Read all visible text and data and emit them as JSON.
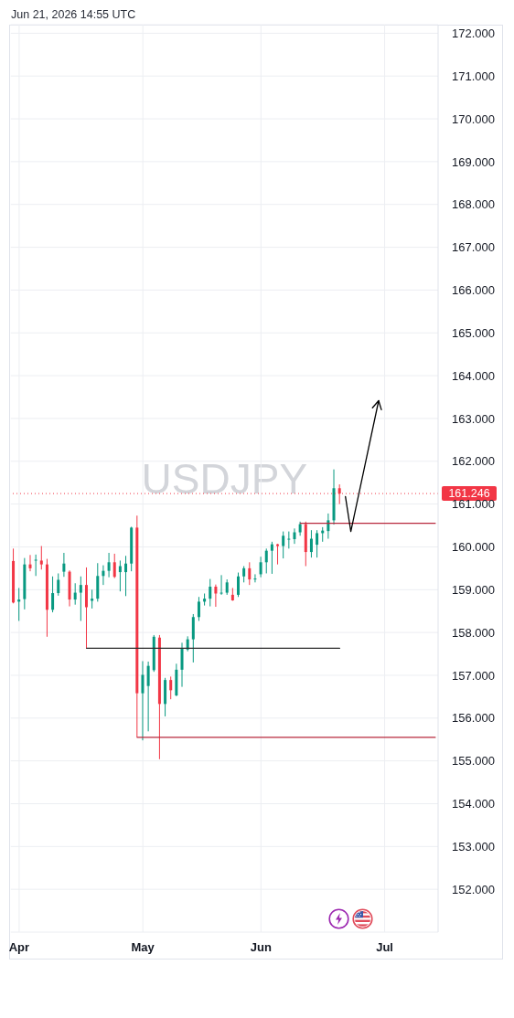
{
  "chart_data": {
    "type": "candlestick",
    "title": "USDJPY",
    "annotations": [
      "Jun 21, 2026 14:55 UTC"
    ],
    "categories": [
      null,
      "Apr",
      null,
      null,
      null,
      null,
      null,
      null,
      null,
      null,
      null,
      null,
      null,
      null,
      null,
      null,
      null,
      null,
      null,
      null,
      null,
      null,
      null,
      "May",
      null,
      null,
      null,
      null,
      null,
      null,
      null,
      null,
      null,
      null,
      null,
      null,
      null,
      null,
      null,
      null,
      null,
      null,
      null,
      null,
      "Jun",
      null,
      null,
      null,
      null,
      null,
      null,
      null,
      null,
      null,
      null,
      null,
      null,
      null,
      null,
      null,
      null,
      null,
      null,
      null,
      null,
      null,
      "Jul",
      null,
      null,
      null,
      null,
      null,
      null,
      null,
      null,
      null
    ],
    "ohlc": [
      [
        159.67,
        159.96,
        158.68,
        158.7
      ],
      [
        158.72,
        159.04,
        158.27,
        158.77
      ],
      [
        158.78,
        159.74,
        158.54,
        159.59
      ],
      [
        159.59,
        159.81,
        159.43,
        159.5
      ],
      [
        159.68,
        159.82,
        159.32,
        159.7
      ],
      [
        159.68,
        160.02,
        159.47,
        159.59
      ],
      [
        159.59,
        159.72,
        157.9,
        158.53
      ],
      [
        158.53,
        159.31,
        158.47,
        158.92
      ],
      [
        158.92,
        159.38,
        158.86,
        159.23
      ],
      [
        159.42,
        159.86,
        159.3,
        159.61
      ],
      [
        159.42,
        159.45,
        158.61,
        158.77
      ],
      [
        158.77,
        159.15,
        158.65,
        158.93
      ],
      [
        158.93,
        159.31,
        158.27,
        159.11
      ],
      [
        159.11,
        159.52,
        157.62,
        158.59
      ],
      [
        158.74,
        159.0,
        158.56,
        158.79
      ],
      [
        158.79,
        159.62,
        158.72,
        159.32
      ],
      [
        159.32,
        159.57,
        159.11,
        159.44
      ],
      [
        159.44,
        159.86,
        159.29,
        159.64
      ],
      [
        159.64,
        159.84,
        159.27,
        159.3
      ],
      [
        159.41,
        159.68,
        158.96,
        159.55
      ],
      [
        159.41,
        159.79,
        158.85,
        159.61
      ],
      [
        159.61,
        160.47,
        159.43,
        160.45
      ],
      [
        160.45,
        160.73,
        155.55,
        156.58
      ],
      [
        156.58,
        157.33,
        155.48,
        157.01
      ],
      [
        156.75,
        157.32,
        155.69,
        157.22
      ],
      [
        157.12,
        157.94,
        157.08,
        157.9
      ],
      [
        157.88,
        157.94,
        155.04,
        156.33
      ],
      [
        156.33,
        156.94,
        156.04,
        156.89
      ],
      [
        156.89,
        156.97,
        156.44,
        156.65
      ],
      [
        156.53,
        157.27,
        156.51,
        157.13
      ],
      [
        157.13,
        157.76,
        156.73,
        157.62
      ],
      [
        157.6,
        157.91,
        157.56,
        157.84
      ],
      [
        157.84,
        158.43,
        157.3,
        158.36
      ],
      [
        158.36,
        158.83,
        158.27,
        158.72
      ],
      [
        158.72,
        158.91,
        158.63,
        158.79
      ],
      [
        158.79,
        159.25,
        158.61,
        159.07
      ],
      [
        159.07,
        159.12,
        158.6,
        158.91
      ],
      [
        158.91,
        159.34,
        158.88,
        158.93
      ],
      [
        158.93,
        159.24,
        158.88,
        159.17
      ],
      [
        158.88,
        159.04,
        158.74,
        158.75
      ],
      [
        158.88,
        159.4,
        158.83,
        159.31
      ],
      [
        159.31,
        159.55,
        159.17,
        159.5
      ],
      [
        159.5,
        159.64,
        159.11,
        159.24
      ],
      [
        159.24,
        159.36,
        159.17,
        159.26
      ],
      [
        159.36,
        159.77,
        159.29,
        159.64
      ],
      [
        159.64,
        159.96,
        159.38,
        159.91
      ],
      [
        159.91,
        160.12,
        159.37,
        160.06
      ],
      [
        160.06,
        160.07,
        159.59,
        160.02
      ],
      [
        160.02,
        160.36,
        159.73,
        160.26
      ],
      [
        160.18,
        160.36,
        159.96,
        160.19
      ],
      [
        160.18,
        160.43,
        160.07,
        160.34
      ],
      [
        160.34,
        160.59,
        160.26,
        160.53
      ],
      [
        160.53,
        160.59,
        159.55,
        159.88
      ],
      [
        159.88,
        160.39,
        159.75,
        160.19
      ],
      [
        160.05,
        160.39,
        159.75,
        160.32
      ],
      [
        160.32,
        160.46,
        160.12,
        160.38
      ],
      [
        160.37,
        160.78,
        160.19,
        160.62
      ],
      [
        160.62,
        161.81,
        160.52,
        161.37
      ],
      [
        161.37,
        161.46,
        161.0,
        161.246
      ],
      null,
      null,
      null,
      null,
      null,
      null,
      null,
      null,
      null,
      null,
      null,
      null,
      null,
      null,
      null,
      null,
      null
    ],
    "colors": [
      "#f23645",
      "#089981",
      "#089981",
      "#f23645",
      "#089981",
      "#f23645",
      "#f23645",
      "#089981",
      "#089981",
      "#089981",
      "#f23645",
      "#089981",
      "#089981",
      "#f23645",
      "#089981",
      "#089981",
      "#089981",
      "#089981",
      "#f23645",
      "#089981",
      "#089981",
      "#089981",
      "#f23645",
      "#089981",
      "#089981",
      "#089981",
      "#f23645",
      "#089981",
      "#f23645",
      "#089981",
      "#089981",
      "#089981",
      "#089981",
      "#089981",
      "#089981",
      "#089981",
      "#f23645",
      "#089981",
      "#089981",
      "#f23645",
      "#089981",
      "#089981",
      "#f23645",
      "#089981",
      "#089981",
      "#089981",
      "#089981",
      "#f23645",
      "#089981",
      "#089981",
      "#089981",
      "#089981",
      "#f23645",
      "#089981",
      "#089981",
      "#089981",
      "#089981",
      "#089981",
      "#f23645",
      null,
      null,
      null,
      null,
      null,
      null,
      null,
      null,
      null,
      null,
      null,
      null,
      null,
      null,
      null,
      null,
      null
    ],
    "series": [
      {
        "type": "line",
        "color": "#2a2a2a",
        "values": [
          null,
          null,
          null,
          null,
          null,
          null,
          null,
          null,
          null,
          null,
          null,
          null,
          null,
          157.63,
          157.63,
          157.63,
          157.63,
          157.63,
          157.63,
          157.63,
          157.63,
          157.63,
          157.63,
          157.63,
          157.63,
          157.63,
          157.63,
          157.63,
          157.63,
          157.63,
          157.63,
          157.63,
          157.63,
          157.63,
          157.63,
          157.63,
          157.63,
          157.63,
          157.63,
          157.63,
          157.63,
          157.63,
          157.63,
          157.63,
          157.63,
          157.63,
          157.63,
          157.63,
          157.63,
          157.63,
          157.63,
          157.63,
          157.63,
          157.63,
          157.63,
          157.63,
          157.63,
          157.63,
          157.63,
          null,
          null,
          null,
          null,
          null,
          null,
          null,
          null,
          null,
          null,
          null,
          null,
          null,
          null,
          null,
          null,
          null
        ]
      },
      {
        "type": "line",
        "color": "#b8283c",
        "values": [
          null,
          null,
          null,
          null,
          null,
          null,
          null,
          null,
          null,
          null,
          null,
          null,
          null,
          null,
          null,
          null,
          null,
          null,
          null,
          null,
          null,
          null,
          155.55,
          155.55,
          155.55,
          155.55,
          155.55,
          155.55,
          155.55,
          155.55,
          155.55,
          155.55,
          155.55,
          155.55,
          155.55,
          155.55,
          155.55,
          155.55,
          155.55,
          155.55,
          155.55,
          155.55,
          155.55,
          155.55,
          155.55,
          155.55,
          155.55,
          155.55,
          155.55,
          155.55,
          155.55,
          155.55,
          155.55,
          155.55,
          155.55,
          155.55,
          155.55,
          155.55,
          155.55,
          155.55,
          155.55,
          155.55,
          155.55,
          155.55,
          155.55,
          155.55,
          155.55,
          155.55,
          155.55,
          155.55,
          155.55,
          155.55,
          155.55,
          155.55,
          155.55,
          155.55
        ]
      },
      {
        "type": "line",
        "color": "#b8283c",
        "values": [
          null,
          null,
          null,
          null,
          null,
          null,
          null,
          null,
          null,
          null,
          null,
          null,
          null,
          null,
          null,
          null,
          null,
          null,
          null,
          null,
          null,
          null,
          null,
          null,
          null,
          null,
          null,
          null,
          null,
          null,
          null,
          null,
          null,
          null,
          null,
          null,
          null,
          null,
          null,
          null,
          null,
          null,
          null,
          null,
          null,
          null,
          null,
          null,
          null,
          null,
          null,
          160.55,
          160.55,
          160.55,
          160.55,
          160.55,
          160.55,
          160.55,
          160.55,
          160.55,
          160.55,
          160.55,
          160.55,
          160.55,
          160.55,
          160.55,
          160.55,
          160.55,
          160.55,
          160.55,
          160.55,
          160.55,
          160.55,
          160.55,
          160.55,
          160.55
        ]
      }
    ],
    "ylim": [
      151,
      172.2
    ],
    "yticks": [
      {
        "value": 152,
        "label": "152.000"
      },
      {
        "value": 153,
        "label": "153.000"
      },
      {
        "value": 154,
        "label": "154.000"
      },
      {
        "value": 155,
        "label": "155.000"
      },
      {
        "value": 156,
        "label": "156.000"
      },
      {
        "value": 157,
        "label": "157.000"
      },
      {
        "value": 158,
        "label": "158.000"
      },
      {
        "value": 159,
        "label": "159.000"
      },
      {
        "value": 160,
        "label": "160.000"
      },
      {
        "value": 161,
        "label": "161.000"
      },
      {
        "value": 162,
        "label": "162.000"
      },
      {
        "value": 163,
        "label": "163.000"
      },
      {
        "value": 164,
        "label": "164.000"
      },
      {
        "value": 165,
        "label": "165.000"
      },
      {
        "value": 166,
        "label": "166.000"
      },
      {
        "value": 167,
        "label": "167.000"
      },
      {
        "value": 168,
        "label": "168.000"
      },
      {
        "value": 169,
        "label": "169.000"
      },
      {
        "value": 170,
        "label": "170.000"
      },
      {
        "value": 171,
        "label": "171.000"
      },
      {
        "value": 172,
        "label": "172.000"
      }
    ],
    "ref_lines": [
      {
        "axis": "y",
        "value": 161.246,
        "label": "161.246",
        "color": "#f23645",
        "line_style": "dotted"
      }
    ],
    "grid": true
  }
}
